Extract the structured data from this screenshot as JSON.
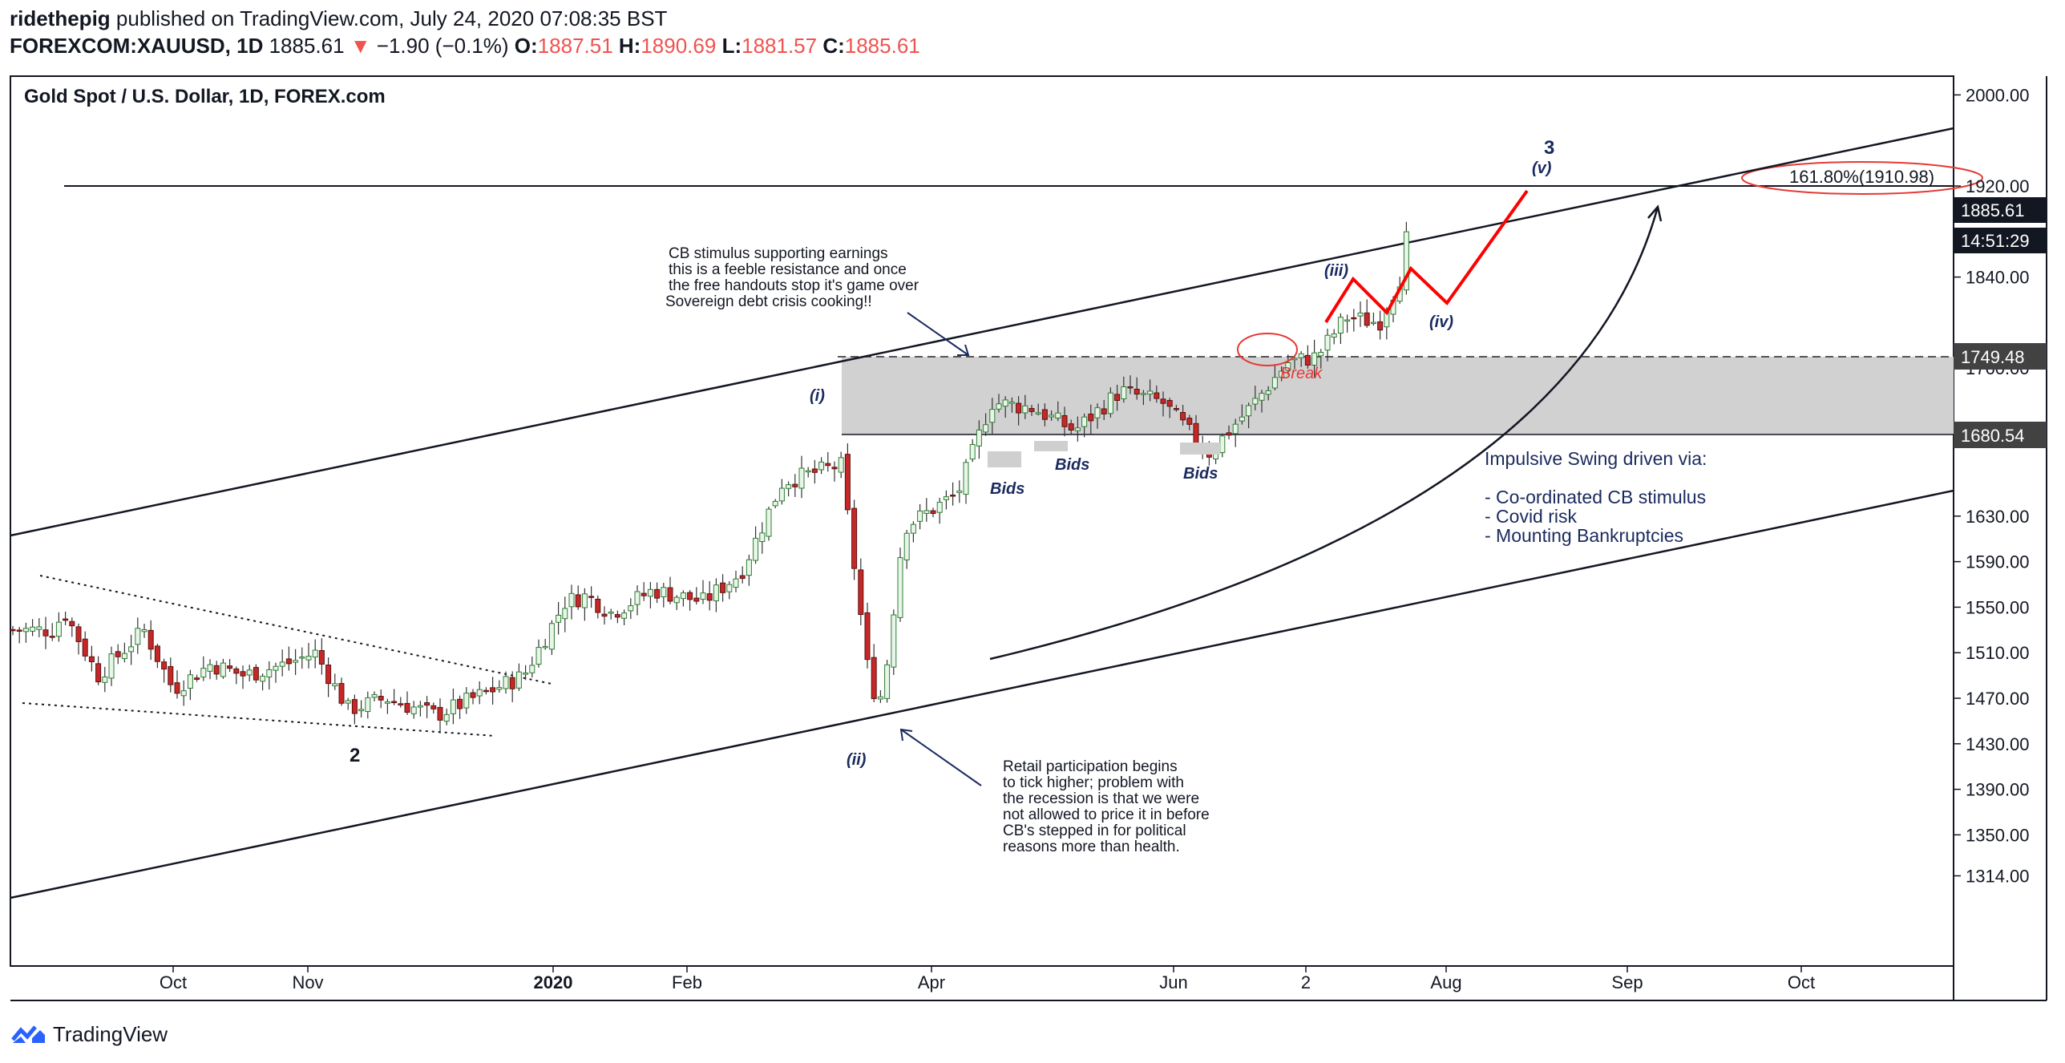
{
  "header": {
    "author": "ridethepig",
    "published_text": "published on TradingView.com, July 24, 2020 07:08:35 BST",
    "symbol": "FOREXCOM:XAUUSD, 1D",
    "last": "1885.61",
    "change_arrow": "▼",
    "change": "−1.90 (−0.1%)",
    "o_label": "O:",
    "o": "1887.51",
    "h_label": "H:",
    "h": "1890.69",
    "l_label": "L:",
    "l": "1881.57",
    "c_label": "C:",
    "c": "1885.61"
  },
  "footer": {
    "brand": "TradingView",
    "logo_icon": "tradingview-logo-icon"
  },
  "chart_data": {
    "type": "candlestick",
    "title": "Gold Spot / U.S. Dollar, 1D, FOREX.com",
    "y_axis": {
      "side": "right",
      "ticks": [
        2000.0,
        1920.0,
        1840.0,
        1760.0,
        1630.0,
        1590.0,
        1550.0,
        1510.0,
        1470.0,
        1430.0,
        1390.0,
        1350.0,
        1314.0
      ]
    },
    "x_axis": {
      "ticks": [
        "Oct",
        "Nov",
        "2020",
        "Feb",
        "Apr",
        "Jun",
        "2",
        "Aug",
        "Sep",
        "Oct"
      ]
    },
    "price_labels": {
      "last_price": "1885.61",
      "countdown": "14:51:29",
      "zone_top": "1749.48",
      "zone_bottom": "1680.54"
    },
    "zone": {
      "top": 1749.48,
      "bottom": 1680.54
    },
    "fib_label": "161.80%(1910.98)",
    "fib_level": 1910.98,
    "series": [
      {
        "x": "2019-09-02",
        "y": 1530
      },
      {
        "x": "2019-09-05",
        "y": 1545
      },
      {
        "x": "2019-09-13",
        "y": 1490
      },
      {
        "x": "2019-09-24",
        "y": 1530
      },
      {
        "x": "2019-10-01",
        "y": 1478
      },
      {
        "x": "2019-10-10",
        "y": 1500
      },
      {
        "x": "2019-10-18",
        "y": 1490
      },
      {
        "x": "2019-10-28",
        "y": 1500
      },
      {
        "x": "2019-11-04",
        "y": 1510
      },
      {
        "x": "2019-11-12",
        "y": 1460
      },
      {
        "x": "2019-11-21",
        "y": 1470
      },
      {
        "x": "2019-12-03",
        "y": 1455
      },
      {
        "x": "2019-12-12",
        "y": 1470
      },
      {
        "x": "2019-12-24",
        "y": 1490
      },
      {
        "x": "2020-01-03",
        "y": 1555
      },
      {
        "x": "2020-01-08",
        "y": 1560
      },
      {
        "x": "2020-01-14",
        "y": 1545
      },
      {
        "x": "2020-01-24",
        "y": 1565
      },
      {
        "x": "2020-02-05",
        "y": 1555
      },
      {
        "x": "2020-02-14",
        "y": 1580
      },
      {
        "x": "2020-02-24",
        "y": 1660
      },
      {
        "x": "2020-03-09",
        "y": 1675
      },
      {
        "x": "2020-03-16",
        "y": 1480
      },
      {
        "x": "2020-03-19",
        "y": 1470
      },
      {
        "x": "2020-03-24",
        "y": 1620
      },
      {
        "x": "2020-04-06",
        "y": 1650
      },
      {
        "x": "2020-04-14",
        "y": 1730
      },
      {
        "x": "2020-04-24",
        "y": 1725
      },
      {
        "x": "2020-05-04",
        "y": 1705
      },
      {
        "x": "2020-05-15",
        "y": 1740
      },
      {
        "x": "2020-05-25",
        "y": 1730
      },
      {
        "x": "2020-06-05",
        "y": 1685
      },
      {
        "x": "2020-06-15",
        "y": 1725
      },
      {
        "x": "2020-06-24",
        "y": 1765
      },
      {
        "x": "2020-07-01",
        "y": 1770
      },
      {
        "x": "2020-07-08",
        "y": 1805
      },
      {
        "x": "2020-07-16",
        "y": 1800
      },
      {
        "x": "2020-07-21",
        "y": 1840
      },
      {
        "x": "2020-07-23",
        "y": 1885.61
      }
    ],
    "annotations": {
      "wave_labels": [
        "2",
        "(i)",
        "(ii)",
        "(iii)",
        "(iv)",
        "3",
        "(v)"
      ],
      "break_label": "Break",
      "bids_labels": [
        "Bids",
        "Bids",
        "Bids"
      ],
      "cb_note": [
        "CB stimulus supporting earnings",
        "this is a feeble resistance and once",
        "the free handouts stop it's game over",
        "Sovereign debt crisis cooking!!"
      ],
      "retail_note": [
        "Retail participation begins",
        "to tick higher; problem with",
        "the recession is that we were",
        "not allowed to price it in before",
        "CB's stepped in for political",
        "reasons more than health."
      ],
      "impulse_title": "Impulsive Swing driven via:",
      "impulse_items": [
        "- Co-ordinated CB stimulus",
        "- Covid risk",
        "- Mounting Bankruptcies"
      ]
    }
  }
}
